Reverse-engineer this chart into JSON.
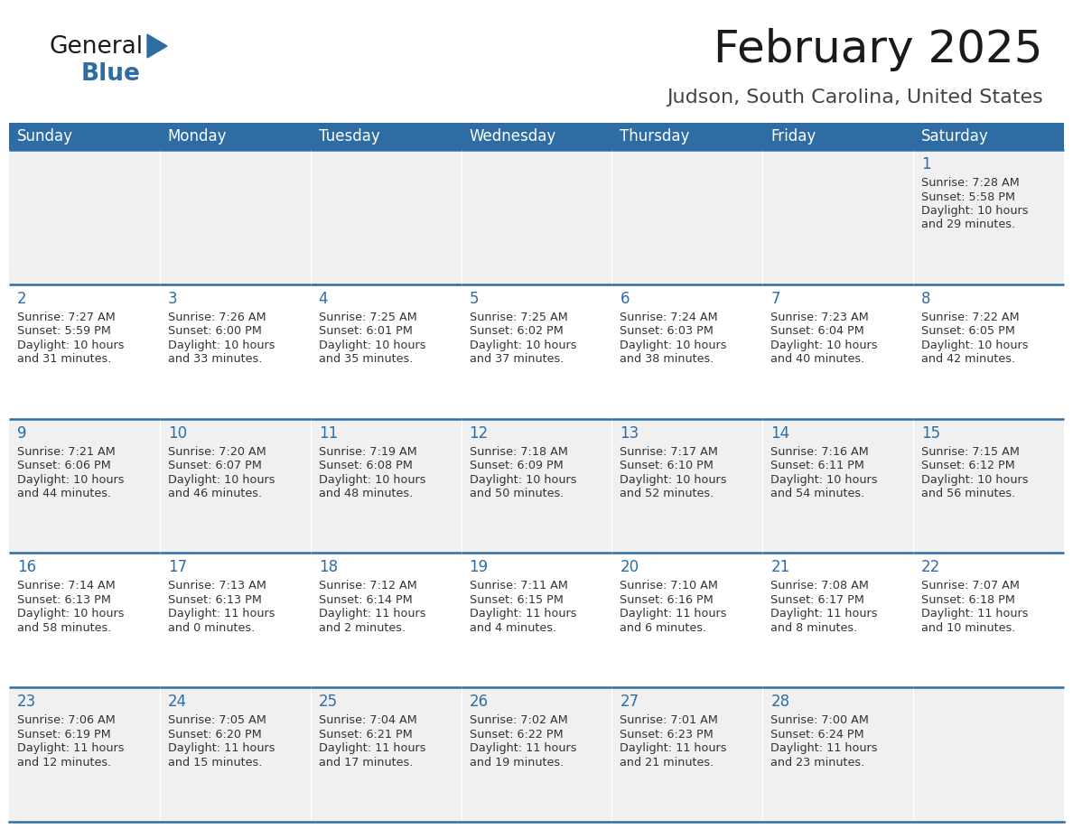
{
  "title": "February 2025",
  "subtitle": "Judson, South Carolina, United States",
  "header_bg_color": "#2E6DA4",
  "header_text_color": "#FFFFFF",
  "cell_bg_even": "#FFFFFF",
  "cell_bg_odd": "#F0F0F0",
  "cell_text_color": "#333333",
  "day_number_color": "#2E6DA4",
  "days_of_week": [
    "Sunday",
    "Monday",
    "Tuesday",
    "Wednesday",
    "Thursday",
    "Friday",
    "Saturday"
  ],
  "calendar_data": [
    [
      null,
      null,
      null,
      null,
      null,
      null,
      {
        "day": 1,
        "sunrise": "7:28 AM",
        "sunset": "5:58 PM",
        "daylight_line1": "Daylight: 10 hours",
        "daylight_line2": "and 29 minutes."
      }
    ],
    [
      {
        "day": 2,
        "sunrise": "7:27 AM",
        "sunset": "5:59 PM",
        "daylight_line1": "Daylight: 10 hours",
        "daylight_line2": "and 31 minutes."
      },
      {
        "day": 3,
        "sunrise": "7:26 AM",
        "sunset": "6:00 PM",
        "daylight_line1": "Daylight: 10 hours",
        "daylight_line2": "and 33 minutes."
      },
      {
        "day": 4,
        "sunrise": "7:25 AM",
        "sunset": "6:01 PM",
        "daylight_line1": "Daylight: 10 hours",
        "daylight_line2": "and 35 minutes."
      },
      {
        "day": 5,
        "sunrise": "7:25 AM",
        "sunset": "6:02 PM",
        "daylight_line1": "Daylight: 10 hours",
        "daylight_line2": "and 37 minutes."
      },
      {
        "day": 6,
        "sunrise": "7:24 AM",
        "sunset": "6:03 PM",
        "daylight_line1": "Daylight: 10 hours",
        "daylight_line2": "and 38 minutes."
      },
      {
        "day": 7,
        "sunrise": "7:23 AM",
        "sunset": "6:04 PM",
        "daylight_line1": "Daylight: 10 hours",
        "daylight_line2": "and 40 minutes."
      },
      {
        "day": 8,
        "sunrise": "7:22 AM",
        "sunset": "6:05 PM",
        "daylight_line1": "Daylight: 10 hours",
        "daylight_line2": "and 42 minutes."
      }
    ],
    [
      {
        "day": 9,
        "sunrise": "7:21 AM",
        "sunset": "6:06 PM",
        "daylight_line1": "Daylight: 10 hours",
        "daylight_line2": "and 44 minutes."
      },
      {
        "day": 10,
        "sunrise": "7:20 AM",
        "sunset": "6:07 PM",
        "daylight_line1": "Daylight: 10 hours",
        "daylight_line2": "and 46 minutes."
      },
      {
        "day": 11,
        "sunrise": "7:19 AM",
        "sunset": "6:08 PM",
        "daylight_line1": "Daylight: 10 hours",
        "daylight_line2": "and 48 minutes."
      },
      {
        "day": 12,
        "sunrise": "7:18 AM",
        "sunset": "6:09 PM",
        "daylight_line1": "Daylight: 10 hours",
        "daylight_line2": "and 50 minutes."
      },
      {
        "day": 13,
        "sunrise": "7:17 AM",
        "sunset": "6:10 PM",
        "daylight_line1": "Daylight: 10 hours",
        "daylight_line2": "and 52 minutes."
      },
      {
        "day": 14,
        "sunrise": "7:16 AM",
        "sunset": "6:11 PM",
        "daylight_line1": "Daylight: 10 hours",
        "daylight_line2": "and 54 minutes."
      },
      {
        "day": 15,
        "sunrise": "7:15 AM",
        "sunset": "6:12 PM",
        "daylight_line1": "Daylight: 10 hours",
        "daylight_line2": "and 56 minutes."
      }
    ],
    [
      {
        "day": 16,
        "sunrise": "7:14 AM",
        "sunset": "6:13 PM",
        "daylight_line1": "Daylight: 10 hours",
        "daylight_line2": "and 58 minutes."
      },
      {
        "day": 17,
        "sunrise": "7:13 AM",
        "sunset": "6:13 PM",
        "daylight_line1": "Daylight: 11 hours",
        "daylight_line2": "and 0 minutes."
      },
      {
        "day": 18,
        "sunrise": "7:12 AM",
        "sunset": "6:14 PM",
        "daylight_line1": "Daylight: 11 hours",
        "daylight_line2": "and 2 minutes."
      },
      {
        "day": 19,
        "sunrise": "7:11 AM",
        "sunset": "6:15 PM",
        "daylight_line1": "Daylight: 11 hours",
        "daylight_line2": "and 4 minutes."
      },
      {
        "day": 20,
        "sunrise": "7:10 AM",
        "sunset": "6:16 PM",
        "daylight_line1": "Daylight: 11 hours",
        "daylight_line2": "and 6 minutes."
      },
      {
        "day": 21,
        "sunrise": "7:08 AM",
        "sunset": "6:17 PM",
        "daylight_line1": "Daylight: 11 hours",
        "daylight_line2": "and 8 minutes."
      },
      {
        "day": 22,
        "sunrise": "7:07 AM",
        "sunset": "6:18 PM",
        "daylight_line1": "Daylight: 11 hours",
        "daylight_line2": "and 10 minutes."
      }
    ],
    [
      {
        "day": 23,
        "sunrise": "7:06 AM",
        "sunset": "6:19 PM",
        "daylight_line1": "Daylight: 11 hours",
        "daylight_line2": "and 12 minutes."
      },
      {
        "day": 24,
        "sunrise": "7:05 AM",
        "sunset": "6:20 PM",
        "daylight_line1": "Daylight: 11 hours",
        "daylight_line2": "and 15 minutes."
      },
      {
        "day": 25,
        "sunrise": "7:04 AM",
        "sunset": "6:21 PM",
        "daylight_line1": "Daylight: 11 hours",
        "daylight_line2": "and 17 minutes."
      },
      {
        "day": 26,
        "sunrise": "7:02 AM",
        "sunset": "6:22 PM",
        "daylight_line1": "Daylight: 11 hours",
        "daylight_line2": "and 19 minutes."
      },
      {
        "day": 27,
        "sunrise": "7:01 AM",
        "sunset": "6:23 PM",
        "daylight_line1": "Daylight: 11 hours",
        "daylight_line2": "and 21 minutes."
      },
      {
        "day": 28,
        "sunrise": "7:00 AM",
        "sunset": "6:24 PM",
        "daylight_line1": "Daylight: 11 hours",
        "daylight_line2": "and 23 minutes."
      },
      null
    ]
  ],
  "logo_text_general": "General",
  "logo_text_blue": "Blue",
  "logo_color_general": "#1a1a1a",
  "logo_color_blue": "#2E6DA4",
  "logo_triangle_color": "#2E6DA4"
}
